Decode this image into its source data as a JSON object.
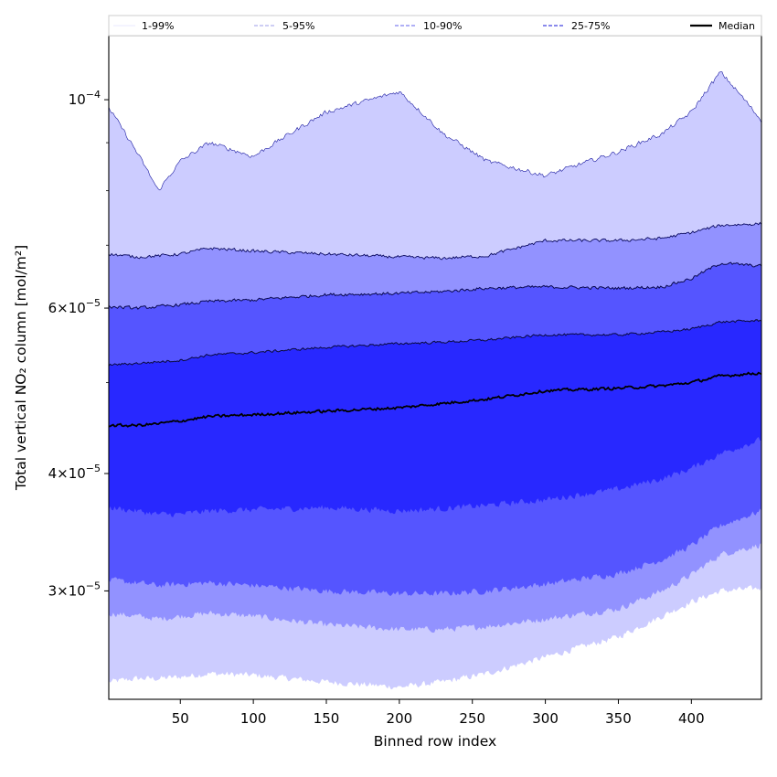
{
  "chart_data": {
    "type": "area",
    "title": "",
    "xlabel": "Binned row index",
    "ylabel": "Total vertical NO₂ column [mol/m²]",
    "yscale": "log",
    "xlim": [
      1,
      448
    ],
    "ylim": [
      2.3e-05,
      0.000117
    ],
    "x_ticks": [
      50,
      100,
      150,
      200,
      250,
      300,
      350,
      400
    ],
    "x_tick_labels": [
      "50",
      "100",
      "150",
      "200",
      "250",
      "300",
      "350",
      "400"
    ],
    "y_ticks": [
      {
        "value": 0.0001,
        "mantissa": "",
        "exponent": "−4",
        "label": "10^-4"
      },
      {
        "value": 6e-05,
        "mantissa": "6",
        "exponent": "−5",
        "label": "6×10^-5"
      },
      {
        "value": 4e-05,
        "mantissa": "4",
        "exponent": "−5",
        "label": "4×10^-5"
      },
      {
        "value": 3e-05,
        "mantissa": "3",
        "exponent": "−5",
        "label": "3×10^-5"
      }
    ],
    "y_minor_ticks": [
      3e-05,
      4e-05,
      5e-05,
      6e-05,
      7e-05,
      8e-05,
      9e-05
    ],
    "legend_position": "top",
    "legend": [
      {
        "label": "1-99%",
        "color": "#eeeeff",
        "style": "solid"
      },
      {
        "label": "5-95%",
        "color": "#b0b0ee",
        "style": "dashed"
      },
      {
        "label": "10-90%",
        "color": "#8080f0",
        "style": "dashed"
      },
      {
        "label": "25-75%",
        "color": "#4545e0",
        "style": "dashed"
      },
      {
        "label": "Median",
        "color": "#000000",
        "style": "solid"
      }
    ],
    "x_knots": [
      1,
      20,
      35,
      50,
      70,
      100,
      150,
      200,
      230,
      260,
      300,
      350,
      380,
      400,
      420,
      448
    ],
    "bands": [
      {
        "name": "1-99%",
        "color": "#ccccff",
        "low": [
          2.4e-05,
          2.42e-05,
          2.42e-05,
          2.43e-05,
          2.45e-05,
          2.44e-05,
          2.4e-05,
          2.37e-05,
          2.4e-05,
          2.45e-05,
          2.55e-05,
          2.68e-05,
          2.82e-05,
          2.92e-05,
          3e-05,
          3.02e-05
        ],
        "high": [
          9.8e-05,
          8.8e-05,
          8e-05,
          8.6e-05,
          9e-05,
          8.7e-05,
          9.7e-05,
          0.000102,
          9.2e-05,
          8.6e-05,
          8.3e-05,
          8.8e-05,
          9.2e-05,
          9.7e-05,
          0.000107,
          9.5e-05
        ]
      },
      {
        "name": "5-95%",
        "color": "#9292ff",
        "low": [
          2.84e-05,
          2.82e-05,
          2.8e-05,
          2.82e-05,
          2.84e-05,
          2.82e-05,
          2.76e-05,
          2.73e-05,
          2.73e-05,
          2.75e-05,
          2.8e-05,
          2.87e-05,
          3e-05,
          3.12e-05,
          3.28e-05,
          3.36e-05
        ],
        "high": [
          6.85e-05,
          6.8e-05,
          6.82e-05,
          6.85e-05,
          6.95e-05,
          6.9e-05,
          6.85e-05,
          6.8e-05,
          6.78e-05,
          6.82e-05,
          7.08e-05,
          7.08e-05,
          7.12e-05,
          7.22e-05,
          7.35e-05,
          7.38e-05
        ]
      },
      {
        "name": "10-90%",
        "color": "#5555ff",
        "low": [
          3.08e-05,
          3.06e-05,
          3.04e-05,
          3.05e-05,
          3.06e-05,
          3.04e-05,
          3e-05,
          2.98e-05,
          2.98e-05,
          3e-05,
          3.05e-05,
          3.13e-05,
          3.24e-05,
          3.35e-05,
          3.52e-05,
          3.65e-05
        ],
        "high": [
          6.02e-05,
          6e-05,
          6.02e-05,
          6.05e-05,
          6.1e-05,
          6.12e-05,
          6.2e-05,
          6.22e-05,
          6.25e-05,
          6.3e-05,
          6.32e-05,
          6.3e-05,
          6.32e-05,
          6.45e-05,
          6.7e-05,
          6.65e-05
        ]
      },
      {
        "name": "25-75%",
        "color": "#2828ff",
        "low": [
          3.68e-05,
          3.65e-05,
          3.62e-05,
          3.62e-05,
          3.65e-05,
          3.66e-05,
          3.68e-05,
          3.65e-05,
          3.67e-05,
          3.7e-05,
          3.75e-05,
          3.85e-05,
          3.95e-05,
          4.05e-05,
          4.2e-05,
          4.35e-05
        ]
      }
    ],
    "upper_quartile": [
      5.22e-05,
      5.24e-05,
      5.26e-05,
      5.28e-05,
      5.35e-05,
      5.38e-05,
      5.45e-05,
      5.5e-05,
      5.52e-05,
      5.55e-05,
      5.62e-05,
      5.62e-05,
      5.66e-05,
      5.7e-05,
      5.8e-05,
      5.82e-05
    ],
    "median": [
      4.5e-05,
      4.5e-05,
      4.52e-05,
      4.55e-05,
      4.6e-05,
      4.62e-05,
      4.66e-05,
      4.7e-05,
      4.75e-05,
      4.8e-05,
      4.9e-05,
      4.93e-05,
      4.96e-05,
      5e-05,
      5.08e-05,
      5.12e-05
    ]
  }
}
